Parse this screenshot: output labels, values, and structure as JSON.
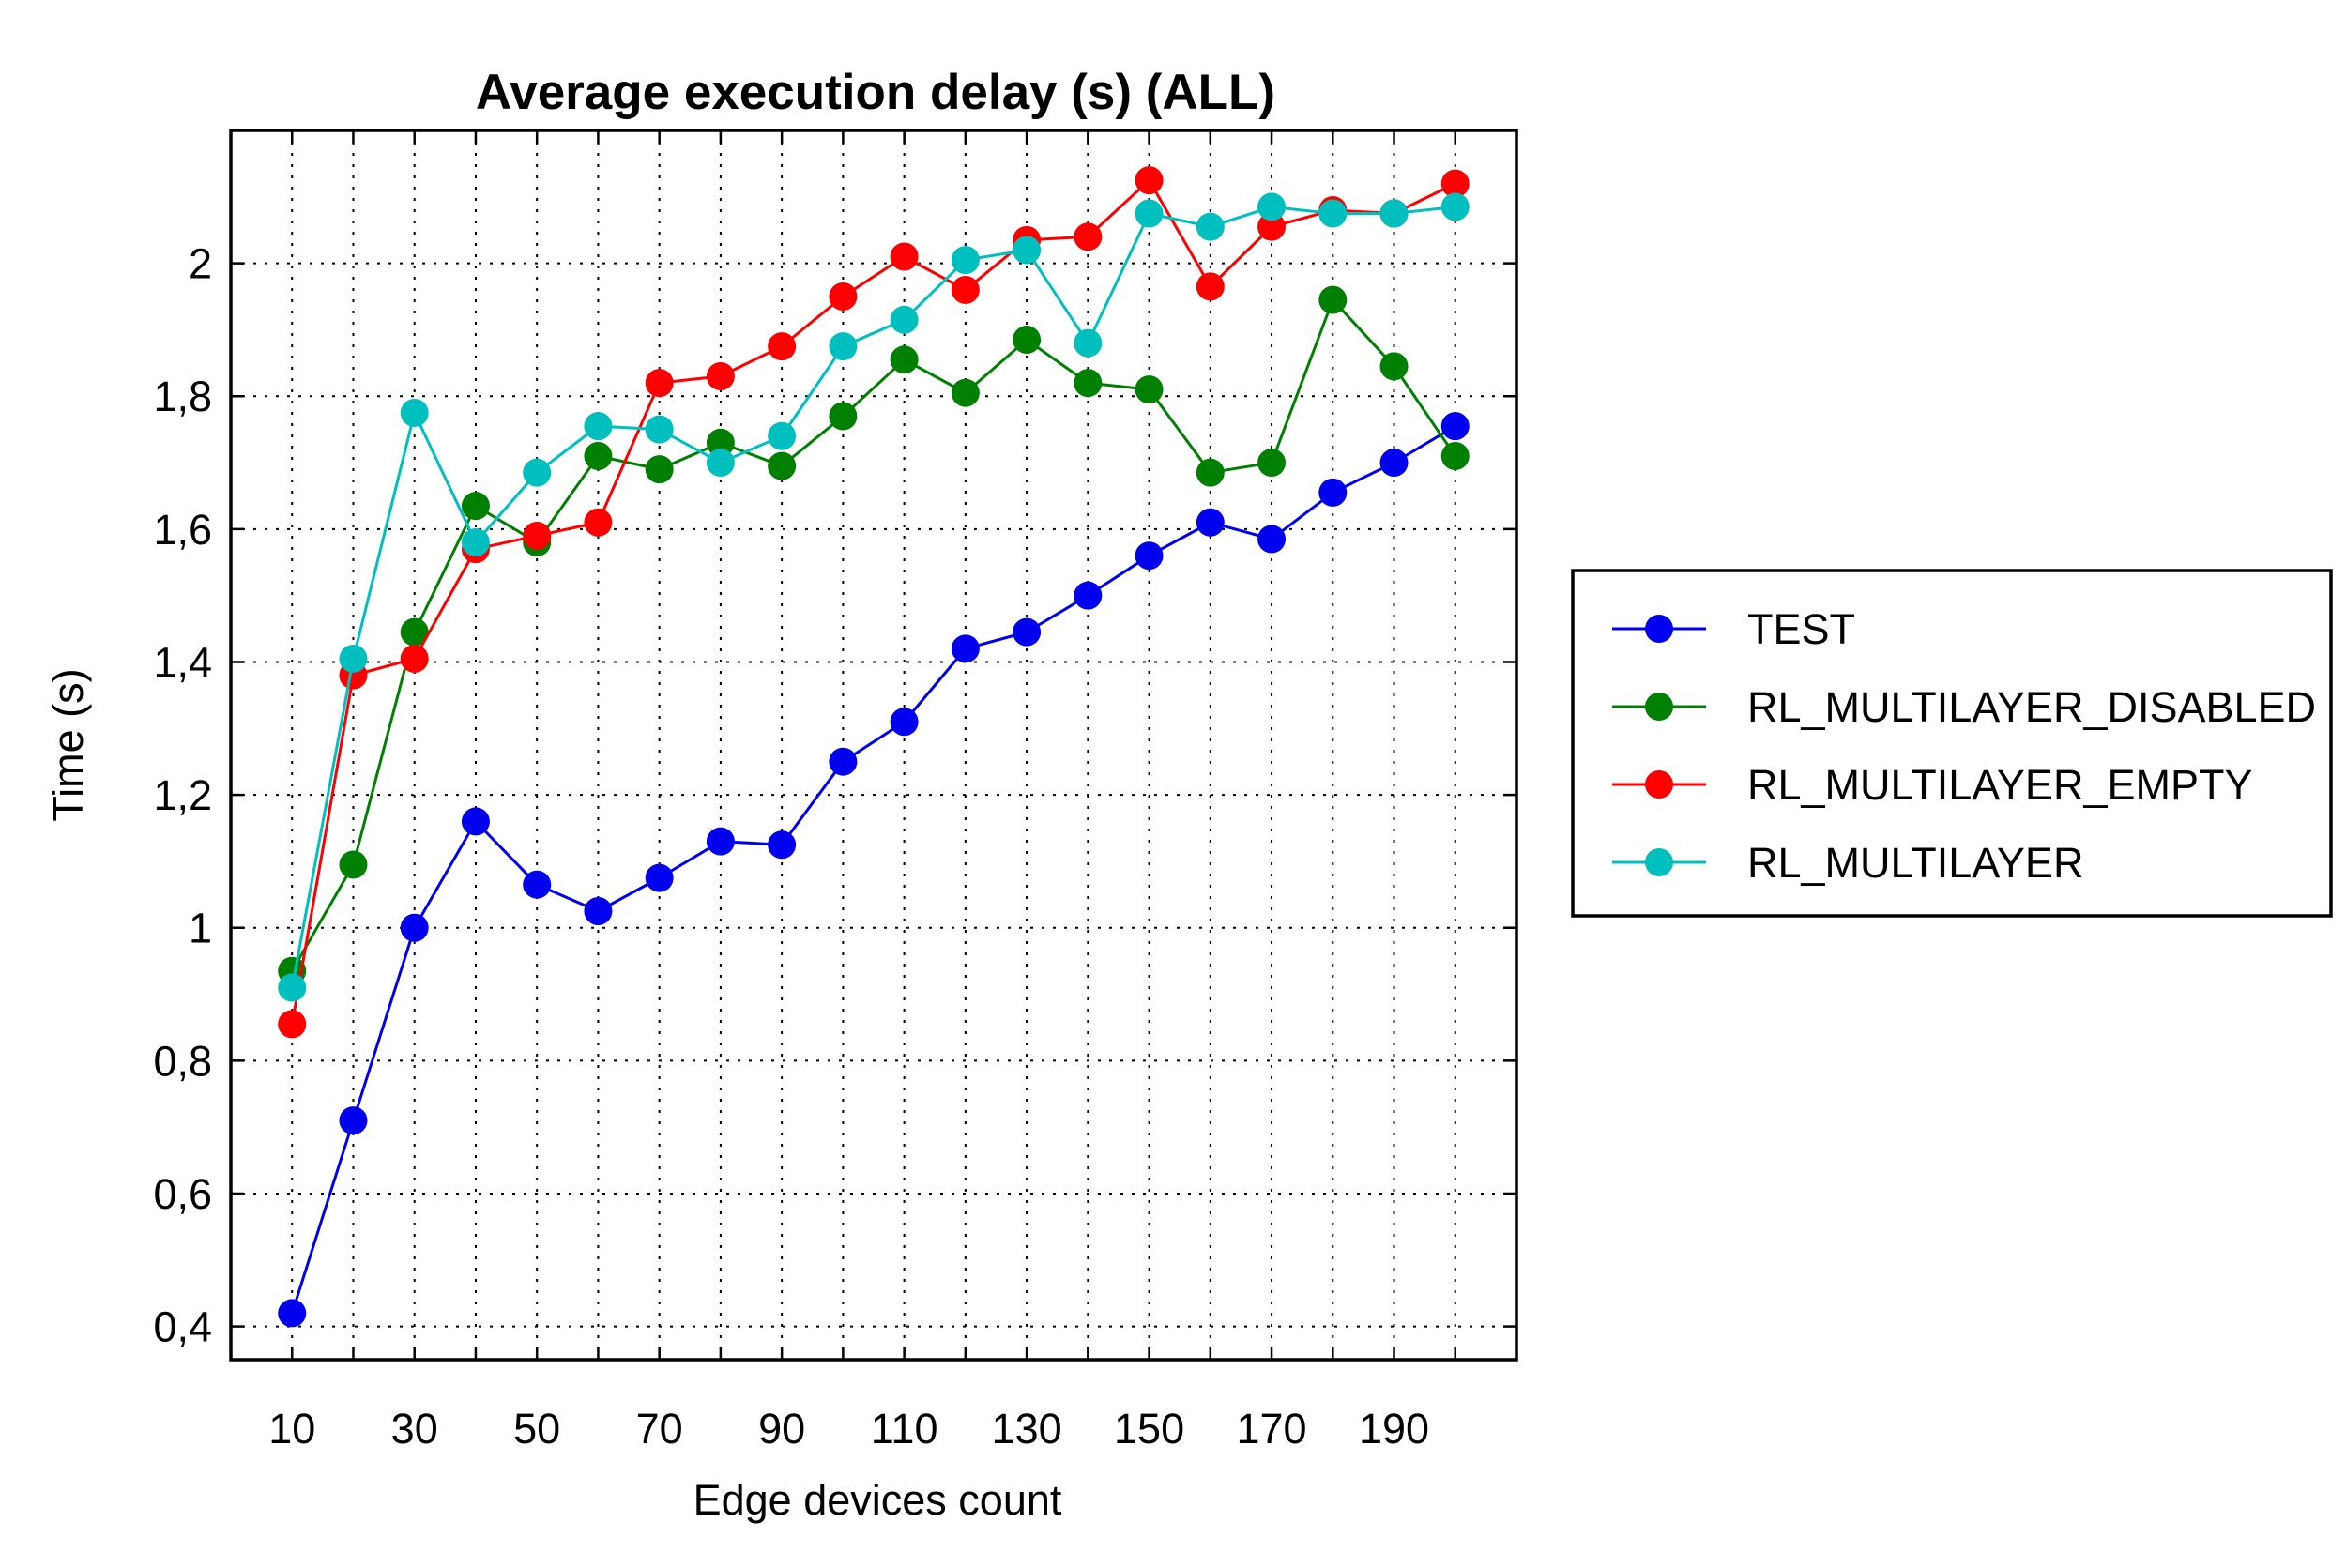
{
  "chart_data": {
    "type": "line",
    "title": "Average execution delay (s) (ALL)",
    "xlabel": "Edge devices count",
    "ylabel": "Time (s)",
    "xlim": [
      0,
      210
    ],
    "ylim": [
      0.35,
      2.2
    ],
    "grid": true,
    "legend_position": "right",
    "x_ticks": [
      10,
      30,
      50,
      70,
      90,
      110,
      130,
      150,
      170,
      190
    ],
    "x_tick_labels": [
      "10",
      "30",
      "50",
      "70",
      "90",
      "110",
      "130",
      "150",
      "170",
      "190"
    ],
    "y_ticks": [
      0.4,
      0.6,
      0.8,
      1.0,
      1.2,
      1.4,
      1.6,
      1.8,
      2.0
    ],
    "y_tick_labels": [
      "0,4",
      "0,6",
      "0,8",
      "1",
      "1,2",
      "1,4",
      "1,6",
      "1,8",
      "2"
    ],
    "x": [
      10,
      20,
      30,
      40,
      50,
      60,
      70,
      80,
      90,
      100,
      110,
      120,
      130,
      140,
      150,
      160,
      170,
      180,
      190,
      200
    ],
    "series": [
      {
        "name": "TEST",
        "color": "#0000ee",
        "values": [
          0.42,
          0.71,
          1.0,
          1.16,
          1.065,
          1.025,
          1.075,
          1.13,
          1.125,
          1.25,
          1.31,
          1.42,
          1.445,
          1.5,
          1.56,
          1.61,
          1.585,
          1.655,
          1.7,
          1.755
        ]
      },
      {
        "name": "RL_MULTILAYER_DISABLED",
        "color": "#008000",
        "values": [
          0.935,
          1.095,
          1.445,
          1.635,
          1.58,
          1.71,
          1.69,
          1.73,
          1.695,
          1.77,
          1.855,
          1.805,
          1.885,
          1.82,
          1.81,
          1.685,
          1.7,
          1.945,
          1.845,
          1.71
        ]
      },
      {
        "name": "RL_MULTILAYER_EMPTY",
        "color": "#ff0000",
        "values": [
          0.855,
          1.38,
          1.405,
          1.57,
          1.59,
          1.61,
          1.82,
          1.83,
          1.875,
          1.95,
          2.01,
          1.96,
          2.035,
          2.04,
          2.125,
          1.965,
          2.055,
          2.08,
          2.075,
          2.12
        ]
      },
      {
        "name": "RL_MULTILAYER",
        "color": "#00bfbf",
        "values": [
          0.91,
          1.405,
          1.775,
          1.58,
          1.685,
          1.755,
          1.75,
          1.7,
          1.74,
          1.875,
          1.915,
          2.005,
          2.02,
          1.88,
          2.075,
          2.055,
          2.085,
          2.075,
          2.075,
          2.085
        ]
      }
    ]
  }
}
